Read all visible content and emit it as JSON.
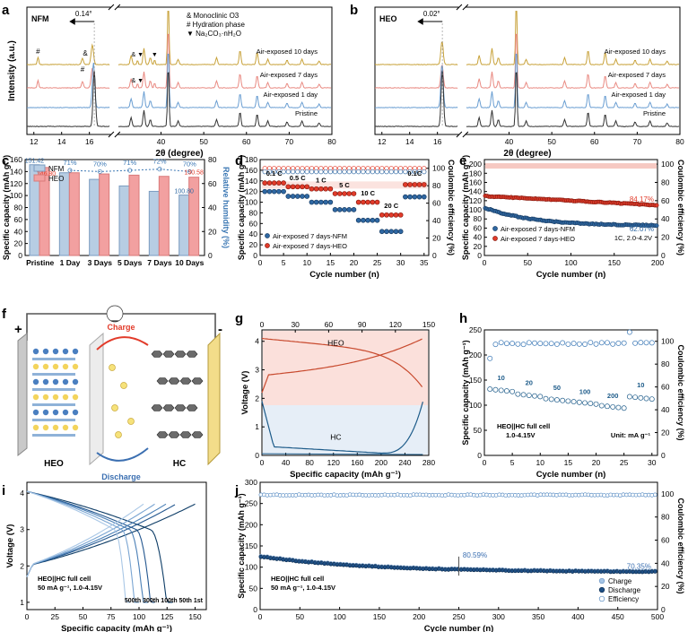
{
  "colors": {
    "blue": "#2f68a3",
    "red": "#e23b2a",
    "gold": "#c8a23a",
    "salmon": "#e98a82",
    "lightblue": "#6a9ed2",
    "black": "#333333",
    "nfm_bar": "#b7cde3",
    "heo_bar": "#f2a0a0",
    "humidity": "#3c78b4"
  },
  "panels": {
    "a": "a",
    "b": "b",
    "c": "c",
    "d": "d",
    "e": "e",
    "f": "f",
    "g": "g",
    "h": "h",
    "i": "i",
    "j": "j"
  },
  "panel_a": {
    "inner_label": "NFM",
    "shift": "0.14°",
    "xlabel": "2θ (degree)",
    "ylabel": "Intensity (a.u.)",
    "legend": [
      {
        "sym": "&",
        "text": "Monoclinic O3"
      },
      {
        "sym": "#",
        "text": "Hydration phase"
      },
      {
        "sym": "▼",
        "text": "Na₂CO₃·nH₂O"
      }
    ],
    "traces": [
      "Air-exposed 10 days",
      "Air-exposed 7 days",
      "Air-exposed 1 day",
      "Pristine"
    ],
    "xticks_left": [
      "12",
      "14",
      "16"
    ],
    "xticks_right": [
      "40",
      "50",
      "60",
      "70",
      "80"
    ]
  },
  "panel_b": {
    "inner_label": "HEO",
    "shift": "0.02°",
    "xlabel": "2θ (degree)",
    "traces": [
      "Air-exposed 10 days",
      "Air-exposed 7 days",
      "Air-exposed 1 day",
      "Pristine"
    ],
    "xticks_left": [
      "12",
      "14",
      "16"
    ],
    "xticks_right": [
      "40",
      "50",
      "60",
      "70",
      "80"
    ]
  },
  "panel_c": {
    "ylabel": "Specific capacity (mAh g⁻¹)",
    "y2label": "Relative humidity (%)",
    "legend": [
      "NFM",
      "HEO"
    ],
    "start_labels": [
      "151.42",
      "146.80"
    ],
    "end_labels": [
      "100.80",
      "130.58"
    ],
    "humidity_labels": [
      "71%",
      "70%",
      "71%",
      "72%",
      "70%"
    ],
    "yticks": [
      "0",
      "20",
      "40",
      "60",
      "80",
      "100",
      "120",
      "140",
      "160"
    ],
    "y2ticks": [
      "0",
      "20",
      "40",
      "60",
      "80"
    ]
  },
  "panel_d": {
    "ylabel": "Specific capacity (mAh g⁻¹)",
    "y2label": "Coulombic efficiency (%)",
    "xlabel": "Cycle number (n)",
    "rate_labels": [
      "0.1 C",
      "0.5 C",
      "1 C",
      "5 C",
      "10 C",
      "20 C",
      "0.1C"
    ],
    "legend": [
      "Air-exposed 7 days-NFM",
      "Air-exposed 7 days-HEO"
    ],
    "xticks": [
      "0",
      "5",
      "10",
      "15",
      "20",
      "25",
      "30",
      "35"
    ],
    "yticks": [
      "0",
      "20",
      "40",
      "60",
      "80",
      "100",
      "120",
      "140",
      "160",
      "180"
    ],
    "y2ticks": [
      "0",
      "20",
      "40",
      "60",
      "80",
      "100"
    ]
  },
  "panel_e": {
    "ylabel": "Specific capacity (mAh g⁻¹)",
    "y2label": "Coulombic efficiency (%)",
    "xlabel": "Cycle number (n)",
    "retention": [
      "84.17%",
      "62.07%"
    ],
    "legend": [
      "Air-exposed 7 days-NFM",
      "Air-exposed 7 days-HEO"
    ],
    "condition": "1C,  2.0-4.2V",
    "xticks": [
      "0",
      "50",
      "100",
      "150",
      "200"
    ],
    "yticks": [
      "0",
      "20",
      "40",
      "60",
      "80",
      "100",
      "120",
      "140",
      "160",
      "180",
      "200"
    ],
    "y2ticks": [
      "0",
      "20",
      "40",
      "60",
      "80",
      "100"
    ]
  },
  "panel_f": {
    "charge": "Charge",
    "discharge": "Discharge",
    "cathode": "HEO",
    "anode": "HC",
    "plus": "+",
    "minus": "-"
  },
  "panel_g": {
    "ylabel": "Voltage (V)",
    "xlabel": "Specific capacity (mAh g⁻¹)",
    "heo": "HEO",
    "hc": "HC",
    "xticks": [
      "0",
      "40",
      "80",
      "120",
      "160",
      "200",
      "240",
      "280"
    ],
    "x2ticks": [
      "0",
      "30",
      "60",
      "90",
      "120",
      "150"
    ],
    "yticks": [
      "0",
      "1",
      "2",
      "3",
      "4"
    ]
  },
  "panel_h": {
    "ylabel": "Specific capacity (mAh g⁻¹)",
    "y2label": "Coulombic efficiency (%)",
    "xlabel": "Cycle number (n)",
    "rate_labels": [
      "10",
      "20",
      "50",
      "100",
      "200",
      "10"
    ],
    "cell": "HEO||HC full cell",
    "window": "1.0-4.15V",
    "unit": "Unit: mA g⁻¹",
    "xticks": [
      "0",
      "5",
      "10",
      "15",
      "20",
      "25",
      "30"
    ],
    "yticks": [
      "0",
      "50",
      "100",
      "150",
      "200",
      "250"
    ],
    "y2ticks": [
      "0",
      "20",
      "40",
      "60",
      "80",
      "100"
    ]
  },
  "panel_i": {
    "ylabel": "Voltage (V)",
    "xlabel": "Specific capacity (mAh g⁻¹)",
    "cell": "HEO||HC full cell",
    "rate": "50 mA g⁻¹,  1.0-4.15V",
    "cycles": "500th 300th 100th 50th 1st",
    "xticks": [
      "0",
      "25",
      "50",
      "75",
      "100",
      "125",
      "150"
    ],
    "yticks": [
      "1",
      "2",
      "3",
      "4"
    ]
  },
  "panel_j": {
    "ylabel": "Specific capacity (mAh g⁻¹)",
    "y2label": "Coulombic efficiency (%)",
    "xlabel": "Cycle number (n)",
    "retention": [
      "80.59%",
      "70.35%"
    ],
    "cell": "HEO||HC full cell",
    "rate": "50 mA g⁻¹,  1.0-4.15V",
    "legend": [
      "Charge",
      "Discharge",
      "Efficiency"
    ],
    "xticks": [
      "0",
      "50",
      "100",
      "150",
      "200",
      "250",
      "300",
      "350",
      "400",
      "450",
      "500"
    ],
    "yticks": [
      "0",
      "50",
      "100",
      "150",
      "200",
      "250",
      "300"
    ],
    "y2ticks": [
      "0",
      "20",
      "40",
      "60",
      "80",
      "100"
    ]
  },
  "chart_data": [
    {
      "id": "a",
      "type": "line",
      "xlabel": "2θ (degree)",
      "ylabel": "Intensity (a.u.)",
      "series": [
        {
          "name": "Pristine"
        },
        {
          "name": "Air-exposed 1 day"
        },
        {
          "name": "Air-exposed 7 days"
        },
        {
          "name": "Air-exposed 10 days"
        }
      ],
      "x_ranges": [
        [
          11.5,
          17.5
        ],
        [
          30,
          80
        ]
      ],
      "peak_shift_deg": 0.14
    },
    {
      "id": "b",
      "type": "line",
      "xlabel": "2θ (degree)",
      "series": [
        {
          "name": "Pristine"
        },
        {
          "name": "Air-exposed 1 day"
        },
        {
          "name": "Air-exposed 7 days"
        },
        {
          "name": "Air-exposed 10 days"
        }
      ],
      "x_ranges": [
        [
          11.5,
          17.5
        ],
        [
          30,
          80
        ]
      ],
      "peak_shift_deg": 0.02
    },
    {
      "id": "c",
      "type": "bar",
      "categories": [
        "Pristine",
        "1 Day",
        "3 Days",
        "5 Days",
        "7 Days",
        "10 Days"
      ],
      "series": [
        {
          "name": "NFM",
          "values": [
            151.42,
            138,
            127,
            116,
            107,
            100.8
          ]
        },
        {
          "name": "HEO",
          "values": [
            146.8,
            138,
            136,
            134,
            132,
            130.58
          ]
        }
      ],
      "humidity": [
        71,
        70,
        71,
        72,
        70
      ],
      "ylabel": "Specific capacity (mAh g⁻¹)",
      "y2label": "Relative humidity (%)",
      "ylim": [
        0,
        160
      ],
      "y2lim": [
        0,
        80
      ]
    },
    {
      "id": "d",
      "type": "scatter",
      "xlabel": "Cycle number (n)",
      "ylabel": "Specific capacity (mAh g⁻¹)",
      "y2label": "Coulombic efficiency (%)",
      "rates": [
        "0.1 C",
        "0.5 C",
        "1 C",
        "5 C",
        "10 C",
        "20 C",
        "0.1C"
      ],
      "series": [
        {
          "name": "Air-exposed 7 days-NFM",
          "segment_values": [
            120,
            111,
            100,
            86,
            66,
            45,
            110
          ]
        },
        {
          "name": "Air-exposed 7 days-HEO",
          "segment_values": [
            136,
            129,
            125,
            116,
            100,
            76,
            133
          ]
        }
      ],
      "xlim": [
        0,
        36
      ],
      "ylim": [
        0,
        180
      ],
      "y2lim": [
        0,
        110
      ],
      "ce_approx": 99
    },
    {
      "id": "e",
      "type": "scatter",
      "xlabel": "Cycle number (n)",
      "ylabel": "Specific capacity (mAh g⁻¹)",
      "y2label": "Coulombic efficiency (%)",
      "series": [
        {
          "name": "Air-exposed 7 days-NFM",
          "start": 105,
          "end": 65,
          "retention": "62.07%"
        },
        {
          "name": "Air-exposed 7 days-HEO",
          "start": 130,
          "end": 110,
          "retention": "84.17%"
        }
      ],
      "xlim": [
        0,
        200
      ],
      "ylim": [
        0,
        210
      ],
      "y2lim": [
        0,
        105
      ],
      "ce_approx": 100
    },
    {
      "id": "g",
      "type": "line",
      "xlabel": "Specific capacity (mAh g⁻¹)",
      "ylabel": "Voltage (V)",
      "xlim": [
        0,
        280
      ],
      "x2lim": [
        0,
        150
      ],
      "ylim": [
        0,
        4.4
      ],
      "series": [
        {
          "name": "HEO"
        },
        {
          "name": "HC"
        }
      ]
    },
    {
      "id": "h",
      "type": "scatter",
      "xlabel": "Cycle number (n)",
      "ylabel": "Specific capacity (mAh g⁻¹)",
      "y2label": "Coulombic efficiency (%)",
      "rates_mA_g": [
        10,
        20,
        50,
        100,
        200,
        10
      ],
      "segment_values": [
        132,
        122,
        113,
        107,
        99,
        117
      ],
      "xlim": [
        0,
        31
      ],
      "ylim": [
        0,
        250
      ],
      "y2lim": [
        0,
        110
      ]
    },
    {
      "id": "i",
      "type": "line",
      "xlabel": "Specific capacity (mAh g⁻¹)",
      "ylabel": "Voltage (V)",
      "xlim": [
        0,
        150
      ],
      "ylim": [
        1,
        4.3
      ],
      "series": [
        {
          "name": "1st",
          "capacity": 130
        },
        {
          "name": "50th",
          "capacity": 115
        },
        {
          "name": "100th",
          "capacity": 108
        },
        {
          "name": "300th",
          "capacity": 100
        },
        {
          "name": "500th",
          "capacity": 92
        }
      ]
    },
    {
      "id": "j",
      "type": "scatter",
      "xlabel": "Cycle number (n)",
      "ylabel": "Specific capacity (mAh g⁻¹)",
      "y2label": "Coulombic efficiency (%)",
      "series": [
        {
          "name": "Charge"
        },
        {
          "name": "Discharge",
          "start": 125,
          "at_250": 100.7,
          "end": 88
        },
        {
          "name": "Efficiency",
          "value": 99
        }
      ],
      "retention": {
        "250": "80.59%",
        "500": "70.35%"
      },
      "xlim": [
        0,
        500
      ],
      "ylim": [
        0,
        300
      ],
      "y2lim": [
        0,
        110
      ]
    }
  ]
}
